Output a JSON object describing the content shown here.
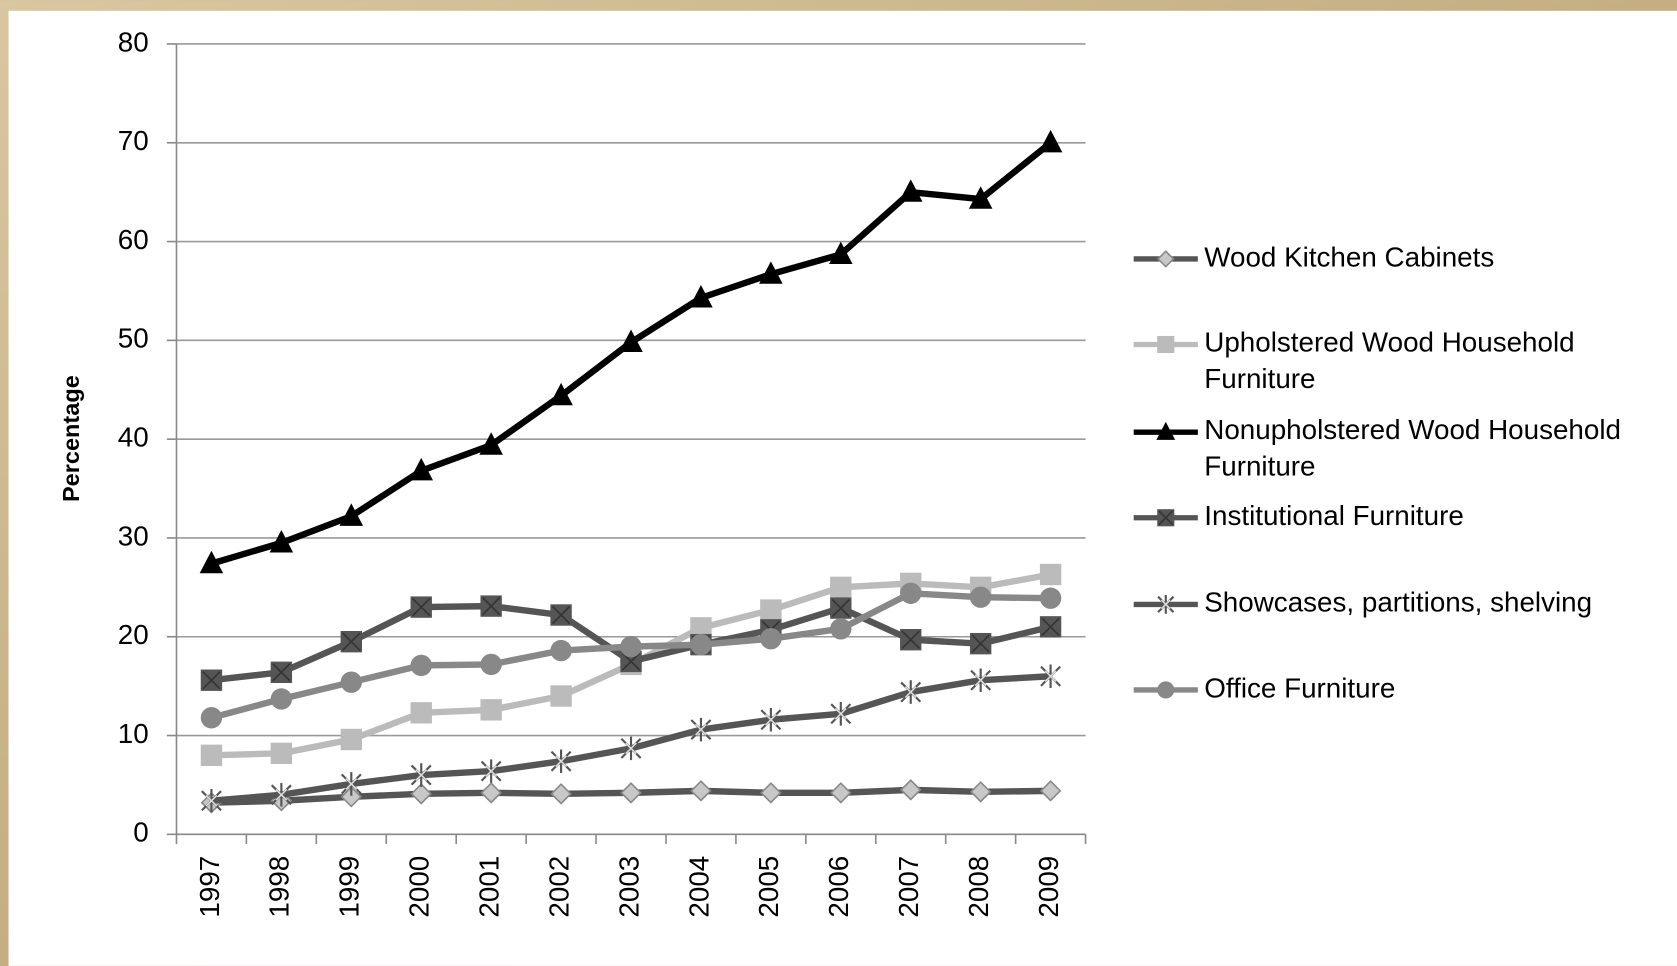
{
  "chart_data": {
    "type": "line",
    "y_label": "Percentage",
    "categories": [
      "1997",
      "1998",
      "1999",
      "2000",
      "2001",
      "2002",
      "2003",
      "2004",
      "2005",
      "2006",
      "2007",
      "2008",
      "2009"
    ],
    "ylim": [
      0,
      80
    ],
    "yticks": [
      0,
      10,
      20,
      30,
      40,
      50,
      60,
      70,
      80
    ],
    "grid": true,
    "legend": "right",
    "series": [
      {
        "name": "Wood Kitchen Cabinets",
        "color": "#555555",
        "marker": "diamond",
        "marker_color": "#c8c8c8",
        "values": [
          3.2,
          3.4,
          3.8,
          4.1,
          4.2,
          4.1,
          4.2,
          4.4,
          4.2,
          4.2,
          4.5,
          4.3,
          4.4
        ]
      },
      {
        "name": "Upholstered Wood Household Furniture",
        "color": "#bbbbbb",
        "marker": "square",
        "marker_color": "#bbbbbb",
        "values": [
          8.0,
          8.2,
          9.6,
          12.3,
          12.6,
          14.0,
          17.2,
          20.9,
          22.7,
          25.0,
          25.4,
          25.0,
          26.3
        ]
      },
      {
        "name": "Nonupholstered Wood Household Furniture",
        "color": "#000000",
        "marker": "triangle",
        "marker_color": "#000000",
        "values": [
          27.4,
          29.5,
          32.2,
          36.8,
          39.4,
          44.4,
          49.8,
          54.3,
          56.7,
          58.7,
          65.0,
          64.3,
          70.0
        ]
      },
      {
        "name": "Institutional Furniture",
        "color": "#555555",
        "marker": "xsquare",
        "marker_color": "#555555",
        "values": [
          15.6,
          16.4,
          19.5,
          23.0,
          23.1,
          22.2,
          17.5,
          19.2,
          20.7,
          22.9,
          19.7,
          19.3,
          21.0
        ]
      },
      {
        "name": "Showcases, partitions, shelving",
        "color": "#555555",
        "marker": "asterisk",
        "marker_color": "#555555",
        "values": [
          3.4,
          4.0,
          5.1,
          6.0,
          6.4,
          7.4,
          8.7,
          10.6,
          11.6,
          12.2,
          14.4,
          15.6,
          16.0
        ]
      },
      {
        "name": "Office Furniture",
        "color": "#888888",
        "marker": "circle",
        "marker_color": "#888888",
        "values": [
          11.8,
          13.7,
          15.4,
          17.1,
          17.2,
          18.6,
          19.0,
          19.2,
          19.8,
          20.8,
          24.4,
          24.0,
          23.9
        ]
      }
    ]
  }
}
